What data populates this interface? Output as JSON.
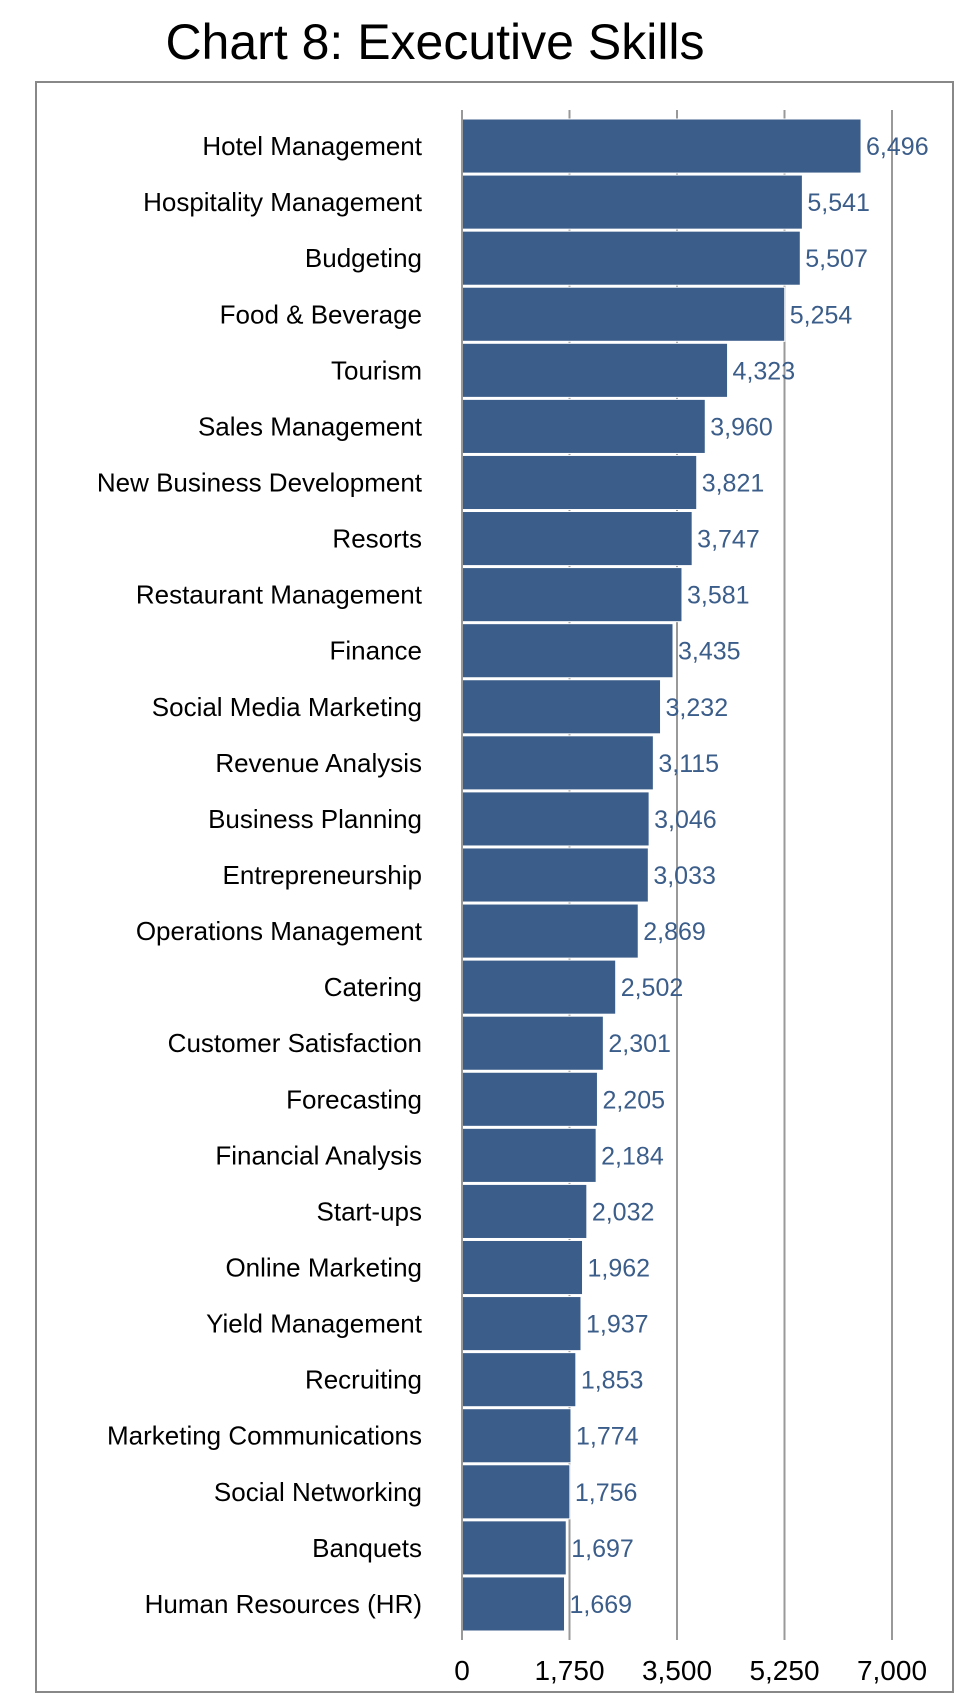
{
  "chart_data": {
    "type": "bar",
    "orientation": "horizontal",
    "title": "Chart 8: Executive Skills",
    "xlabel": "",
    "ylabel": "",
    "categories": [
      "Hotel Management",
      "Hospitality Management",
      "Budgeting",
      "Food & Beverage",
      "Tourism",
      "Sales Management",
      "New Business Development",
      "Resorts",
      "Restaurant Management",
      "Finance",
      "Social Media Marketing",
      "Revenue Analysis",
      "Business Planning",
      "Entrepreneurship",
      "Operations Management",
      "Catering",
      "Customer Satisfaction",
      "Forecasting",
      "Financial Analysis",
      "Start-ups",
      "Online Marketing",
      "Yield Management",
      "Recruiting",
      "Marketing Communications",
      "Social Networking",
      "Banquets",
      "Human Resources (HR)"
    ],
    "values": [
      6496,
      5541,
      5507,
      5254,
      4323,
      3960,
      3821,
      3747,
      3581,
      3435,
      3232,
      3115,
      3046,
      3033,
      2869,
      2502,
      2301,
      2205,
      2184,
      2032,
      1962,
      1937,
      1853,
      1774,
      1756,
      1697,
      1669
    ],
    "value_labels": [
      "6,496",
      "5,541",
      "5,507",
      "5,254",
      "4,323",
      "3,960",
      "3,821",
      "3,747",
      "3,581",
      "3,435",
      "3,232",
      "3,115",
      "3,046",
      "3,033",
      "2,869",
      "2,502",
      "2,301",
      "2,205",
      "2,184",
      "2,032",
      "1,962",
      "1,937",
      "1,853",
      "1,774",
      "1,756",
      "1,697",
      "1,669"
    ],
    "xlim": [
      0,
      7000
    ],
    "xticks": [
      0,
      1750,
      3500,
      5250,
      7000
    ],
    "xtick_labels": [
      "0",
      "1,750",
      "3,500",
      "5,250",
      "7,000"
    ],
    "grid": "vertical",
    "legend": "none",
    "colors": {
      "bar": "#3b5d8a",
      "bar_edge": "#ffffff",
      "value_label": "#3b5d8a",
      "grid": "#999999",
      "axis": "#999999",
      "frame": "#888888"
    }
  }
}
